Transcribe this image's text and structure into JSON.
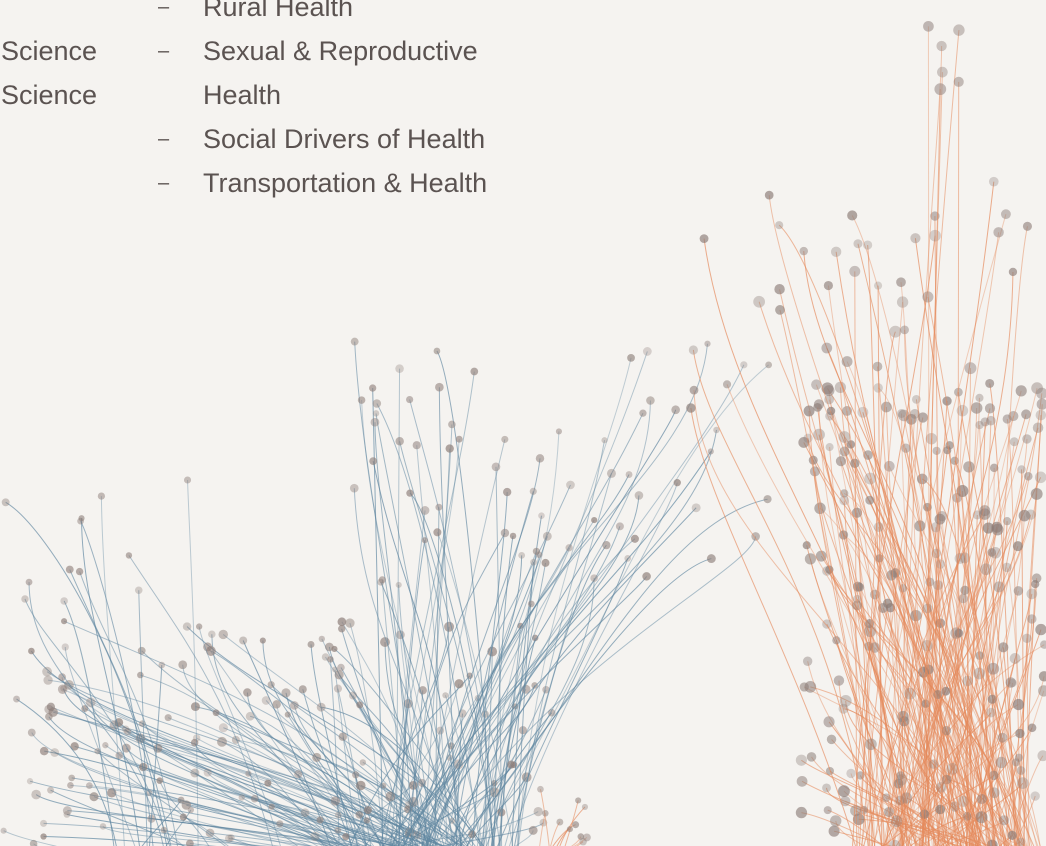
{
  "left_column": [
    "Science",
    "Science"
  ],
  "topics": [
    "Rural Health",
    "Sexual & Reproductive Health",
    "Social Drivers of Health",
    "Transportation & Health"
  ]
}
